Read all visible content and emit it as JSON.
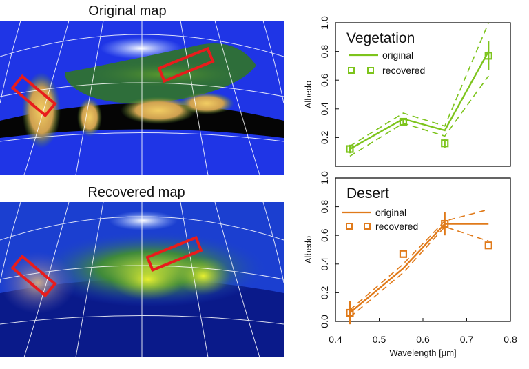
{
  "maps": {
    "original_title": "Original map",
    "recovered_title": "Recovered map"
  },
  "colors": {
    "vegetation": "#7dc41c",
    "desert": "#e07a1a",
    "ocean": "#1f35e6",
    "highlight_box": "#e81c1c"
  },
  "chart_data": [
    {
      "type": "line",
      "title": "Vegetation",
      "ylabel": "Albedo",
      "xlim": [
        0.4,
        0.8
      ],
      "ylim": [
        0.0,
        1.0
      ],
      "yticks": [
        0.2,
        0.4,
        0.6,
        0.8,
        1.0
      ],
      "legend": {
        "placement": "top-left",
        "line_label": "original",
        "marker_label": "recovered"
      },
      "series": [
        {
          "name": "original",
          "style": "solid",
          "x": [
            0.433,
            0.555,
            0.65,
            0.75
          ],
          "y": [
            0.12,
            0.33,
            0.25,
            0.8
          ]
        },
        {
          "style": "dashed",
          "x": [
            0.433,
            0.555,
            0.65,
            0.75
          ],
          "y": [
            0.14,
            0.37,
            0.28,
            1.0
          ]
        },
        {
          "style": "dashed",
          "x": [
            0.433,
            0.555,
            0.65,
            0.75
          ],
          "y": [
            0.07,
            0.3,
            0.21,
            0.63
          ]
        },
        {
          "name": "recovered",
          "style": "markers",
          "x": [
            0.433,
            0.555,
            0.65,
            0.75
          ],
          "y": [
            0.12,
            0.31,
            0.16,
            0.77
          ],
          "yerr": [
            0.03,
            0.02,
            0.03,
            0.1
          ]
        }
      ]
    },
    {
      "type": "line",
      "title": "Desert",
      "xlabel": "Wavelength [μm]",
      "ylabel": "Albedo",
      "xlim": [
        0.4,
        0.8
      ],
      "ylim": [
        0.0,
        1.0
      ],
      "xticks": [
        0.4,
        0.5,
        0.6,
        0.7,
        0.8
      ],
      "yticks": [
        0.0,
        0.2,
        0.4,
        0.6,
        0.8,
        1.0
      ],
      "legend": {
        "placement": "top-left",
        "line_label": "original",
        "marker_label": "recovered"
      },
      "series": [
        {
          "name": "original",
          "style": "solid",
          "x": [
            0.433,
            0.555,
            0.65,
            0.75
          ],
          "y": [
            0.06,
            0.37,
            0.68,
            0.68
          ]
        },
        {
          "style": "dashed",
          "x": [
            0.433,
            0.555,
            0.65,
            0.75
          ],
          "y": [
            0.08,
            0.4,
            0.7,
            0.78
          ]
        },
        {
          "style": "dashed",
          "x": [
            0.433,
            0.555,
            0.65,
            0.75
          ],
          "y": [
            0.03,
            0.34,
            0.66,
            0.56
          ]
        },
        {
          "name": "recovered",
          "style": "markers",
          "x": [
            0.433,
            0.555,
            0.65,
            0.75
          ],
          "y": [
            0.06,
            0.47,
            0.68,
            0.53
          ],
          "yerr": [
            0.08,
            0.0,
            0.08,
            0.0
          ]
        }
      ]
    }
  ]
}
